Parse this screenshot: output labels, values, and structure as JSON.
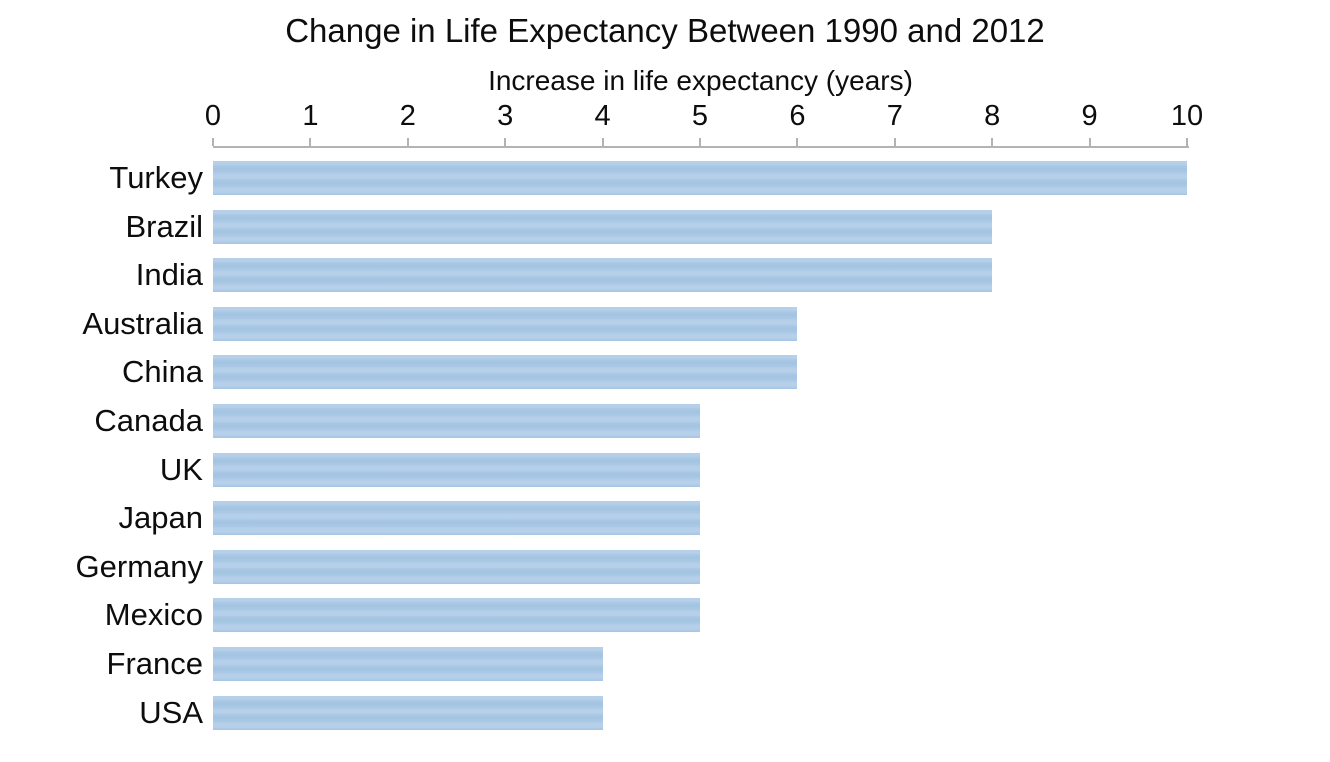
{
  "chart_data": {
    "type": "bar",
    "orientation": "horizontal",
    "title": "Change in Life Expectancy Between 1990 and 2012",
    "xlabel": "Increase in life expectancy (years)",
    "ylabel": "",
    "categories": [
      "Turkey",
      "Brazil",
      "India",
      "Australia",
      "China",
      "Canada",
      "UK",
      "Japan",
      "Germany",
      "Mexico",
      "France",
      "USA"
    ],
    "values": [
      10,
      8,
      8,
      6,
      6,
      5,
      5,
      5,
      5,
      5,
      4,
      4
    ],
    "xlim": [
      0,
      10
    ],
    "x_ticks": [
      0,
      1,
      2,
      3,
      4,
      5,
      6,
      7,
      8,
      9,
      10
    ],
    "tick_label_position": "top",
    "grid": false,
    "legend": false,
    "colors": {
      "bar_fill": "#a9c8e5",
      "bar_band_light": "#b6d0ea",
      "bar_band_dark": "#a3c4e1",
      "axis": "#b3b3b3",
      "text": "#0d0d0d",
      "background": "#ffffff"
    }
  }
}
